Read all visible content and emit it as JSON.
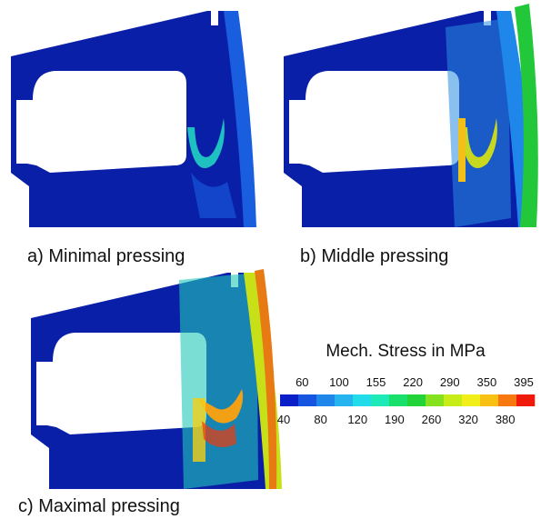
{
  "captions": [
    "a) Minimal pressing",
    "b) Middle pressing",
    "c) Maximal pressing"
  ],
  "legend": {
    "title": "Mech. Stress in MPa",
    "labels": [
      "40",
      "60",
      "80",
      "100",
      "120",
      "155",
      "190",
      "220",
      "260",
      "290",
      "320",
      "350",
      "380",
      "395"
    ],
    "colors": [
      "#0a1fc8",
      "#1555e0",
      "#1f86ea",
      "#26b4f0",
      "#22dcea",
      "#1eeab8",
      "#18e06a",
      "#22d43a",
      "#86e21e",
      "#c8ec18",
      "#f2ee1a",
      "#f8c012",
      "#f7780e",
      "#f01a0a"
    ]
  }
}
